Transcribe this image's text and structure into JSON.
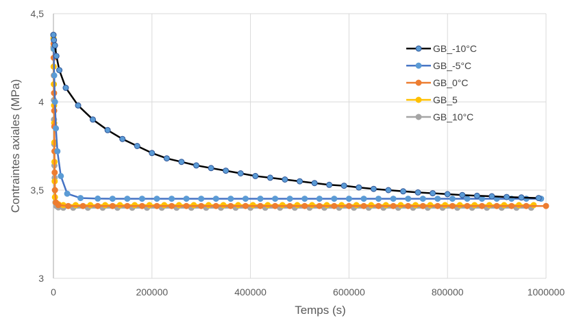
{
  "chart_data": {
    "type": "scatter",
    "title": "",
    "xlabel": "Temps (s)",
    "ylabel": "Contraintes axiales (MPa)",
    "xlim": [
      0,
      1000000
    ],
    "ylim": [
      3,
      4.5
    ],
    "x_ticks": [
      "0",
      "200000",
      "400000",
      "600000",
      "800000",
      "1000000"
    ],
    "y_ticks": [
      {
        "value": 3,
        "label": "3"
      },
      {
        "value": 3.5,
        "label": "3,5"
      },
      {
        "value": 4,
        "label": "4"
      },
      {
        "value": 4.5,
        "label": "4,5"
      }
    ],
    "grid": true,
    "legend_position": "top-right",
    "series": [
      {
        "name": "GB_-10°C",
        "color": "#000000",
        "marker_color": "#5B9BD5",
        "x": [
          0,
          1000,
          3000,
          6000,
          12000,
          25000,
          50000,
          80000,
          110000,
          140000,
          170000,
          200000,
          230000,
          260000,
          290000,
          320000,
          350000,
          380000,
          410000,
          440000,
          470000,
          500000,
          530000,
          560000,
          590000,
          620000,
          650000,
          680000,
          710000,
          740000,
          770000,
          800000,
          830000,
          860000,
          890000,
          920000,
          950000,
          985000
        ],
        "y": [
          4.38,
          4.35,
          4.32,
          4.26,
          4.18,
          4.08,
          3.98,
          3.9,
          3.84,
          3.79,
          3.75,
          3.71,
          3.68,
          3.66,
          3.64,
          3.625,
          3.61,
          3.595,
          3.58,
          3.57,
          3.56,
          3.55,
          3.54,
          3.53,
          3.525,
          3.515,
          3.507,
          3.5,
          3.493,
          3.487,
          3.482,
          3.477,
          3.472,
          3.468,
          3.465,
          3.461,
          3.458,
          3.455
        ]
      },
      {
        "name": "GB_-5°C",
        "color": "#4472C4",
        "marker_color": "#5B9BD5",
        "x": [
          0,
          500,
          1500,
          3000,
          5000,
          8000,
          15000,
          28000,
          55000,
          90000,
          120000,
          150000,
          180000,
          210000,
          240000,
          270000,
          300000,
          330000,
          360000,
          390000,
          420000,
          450000,
          480000,
          510000,
          540000,
          570000,
          600000,
          630000,
          660000,
          690000,
          720000,
          750000,
          780000,
          810000,
          840000,
          870000,
          900000,
          930000,
          960000,
          990000
        ],
        "y": [
          4.38,
          4.3,
          4.15,
          4.0,
          3.85,
          3.72,
          3.58,
          3.48,
          3.455,
          3.452,
          3.451,
          3.451,
          3.451,
          3.451,
          3.451,
          3.451,
          3.451,
          3.451,
          3.451,
          3.451,
          3.451,
          3.451,
          3.451,
          3.451,
          3.451,
          3.451,
          3.451,
          3.451,
          3.451,
          3.451,
          3.451,
          3.451,
          3.451,
          3.451,
          3.451,
          3.451,
          3.451,
          3.451,
          3.451,
          3.451
        ]
      },
      {
        "name": "GB_0°C",
        "color": "#ED7D31",
        "marker_color": "#ED7D31",
        "x": [
          0,
          300,
          600,
          900,
          1200,
          1500,
          1800,
          2100,
          2500,
          3000,
          5000,
          10000,
          30000,
          60000,
          90000,
          120000,
          150000,
          180000,
          210000,
          240000,
          270000,
          300000,
          330000,
          360000,
          390000,
          420000,
          450000,
          480000,
          510000,
          540000,
          570000,
          600000,
          630000,
          660000,
          690000,
          720000,
          750000,
          780000,
          810000,
          840000,
          870000,
          900000,
          930000,
          960000,
          1000000
        ],
        "y": [
          4.38,
          4.33,
          4.25,
          4.15,
          4.05,
          3.95,
          3.86,
          3.72,
          3.6,
          3.5,
          3.43,
          3.415,
          3.41,
          3.41,
          3.41,
          3.41,
          3.41,
          3.41,
          3.41,
          3.41,
          3.41,
          3.41,
          3.41,
          3.41,
          3.41,
          3.41,
          3.41,
          3.41,
          3.41,
          3.41,
          3.41,
          3.41,
          3.41,
          3.41,
          3.41,
          3.41,
          3.41,
          3.41,
          3.41,
          3.41,
          3.41,
          3.41,
          3.41,
          3.41,
          3.41
        ]
      },
      {
        "name": "GB_5",
        "color": "#FFC000",
        "marker_color": "#FFC000",
        "x": [
          0,
          300,
          600,
          900,
          1200,
          1500,
          1800,
          2100,
          2500,
          3000,
          5000,
          10000,
          20000,
          45000,
          75000,
          105000,
          135000,
          165000,
          195000,
          225000,
          255000,
          285000,
          315000,
          345000,
          375000,
          405000,
          435000,
          465000,
          495000,
          525000,
          555000,
          585000,
          615000,
          645000,
          675000,
          705000,
          735000,
          765000,
          795000,
          825000,
          855000,
          885000,
          915000,
          945000,
          975000
        ],
        "y": [
          4.36,
          4.3,
          4.2,
          4.1,
          3.98,
          3.88,
          3.77,
          3.66,
          3.55,
          3.46,
          3.43,
          3.42,
          3.415,
          3.415,
          3.415,
          3.415,
          3.415,
          3.415,
          3.415,
          3.415,
          3.415,
          3.415,
          3.415,
          3.415,
          3.415,
          3.415,
          3.415,
          3.415,
          3.415,
          3.415,
          3.415,
          3.415,
          3.415,
          3.415,
          3.415,
          3.415,
          3.415,
          3.415,
          3.415,
          3.415,
          3.415,
          3.415,
          3.415,
          3.415,
          3.415
        ]
      },
      {
        "name": "GB_10°C",
        "color": "#A5A5A5",
        "marker_color": "#A5A5A5",
        "x": [
          0,
          400,
          800,
          1200,
          1600,
          2000,
          2500,
          3000,
          4000,
          6000,
          10000,
          20000,
          40000,
          70000,
          100000,
          130000,
          160000,
          190000,
          220000,
          250000,
          280000,
          310000,
          340000,
          370000,
          400000,
          430000,
          460000,
          490000,
          520000,
          550000,
          580000,
          610000,
          640000,
          670000,
          700000,
          730000,
          760000,
          790000,
          820000,
          850000,
          880000,
          910000,
          940000,
          970000
        ],
        "y": [
          4.31,
          4.2,
          4.01,
          3.9,
          3.76,
          3.64,
          3.57,
          3.5,
          3.43,
          3.41,
          3.402,
          3.4,
          3.4,
          3.4,
          3.4,
          3.4,
          3.4,
          3.4,
          3.4,
          3.4,
          3.4,
          3.4,
          3.4,
          3.4,
          3.4,
          3.4,
          3.4,
          3.4,
          3.4,
          3.4,
          3.4,
          3.4,
          3.4,
          3.4,
          3.4,
          3.4,
          3.4,
          3.4,
          3.4,
          3.4,
          3.4,
          3.4,
          3.4,
          3.4
        ]
      }
    ]
  }
}
